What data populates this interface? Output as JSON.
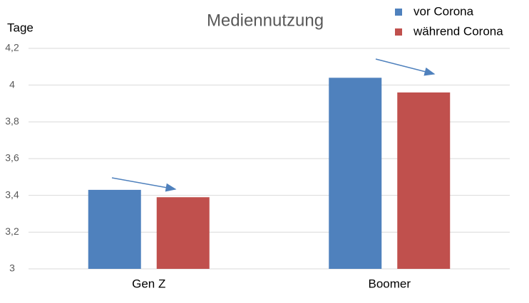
{
  "chart_data": {
    "type": "bar",
    "title": "Mediennutzung",
    "y_label": "Tage",
    "categories": [
      "Gen Z",
      "Boomer"
    ],
    "series": [
      {
        "name": "vor Corona",
        "color": "#4f81bd",
        "values": [
          3.43,
          4.04
        ]
      },
      {
        "name": "während Corona",
        "color": "#c0504d",
        "values": [
          3.39,
          3.96
        ]
      }
    ],
    "ylim": [
      3,
      4.2
    ],
    "yticks": [
      3,
      {
        "value": 3.2,
        "label": "3,2"
      },
      {
        "value": 3.4,
        "label": "3,4"
      },
      {
        "value": 3.6,
        "label": "3,6"
      },
      {
        "value": 3.8,
        "label": "3,8"
      },
      4,
      {
        "value": 4.2,
        "label": "4,2"
      }
    ],
    "grid": true
  }
}
